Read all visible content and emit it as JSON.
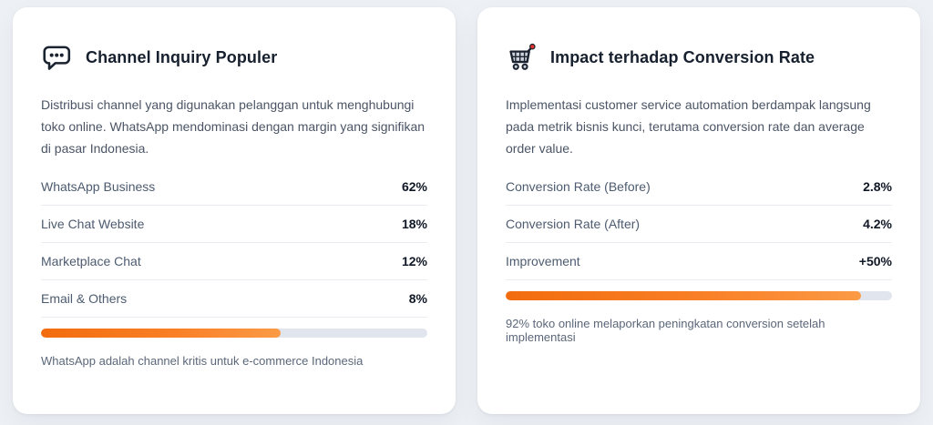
{
  "colors": {
    "page_background": "#edf1f6",
    "card_background": "#ffffff",
    "title_text": "#17202e",
    "body_text": "#4b5565",
    "row_label": "#4d5b70",
    "row_value": "#101826",
    "divider": "#e9edf2",
    "progress_track": "#e0e5ee",
    "progress_start": "#f26c0e",
    "progress_end": "#fb9a45",
    "footnote_text": "#5b6779",
    "cart_icon_accent": "#e8352e"
  },
  "cards": {
    "left": {
      "icon": "speech-balloon-icon",
      "title": "Channel Inquiry Populer",
      "description": "Distribusi channel yang digunakan pelanggan untuk menghubungi toko online. WhatsApp mendominasi dengan margin yang signifikan di pasar Indonesia.",
      "rows": [
        {
          "label": "WhatsApp Business",
          "value": "62%"
        },
        {
          "label": "Live Chat Website",
          "value": "18%"
        },
        {
          "label": "Marketplace Chat",
          "value": "12%"
        },
        {
          "label": "Email & Others",
          "value": "8%"
        }
      ],
      "progress_percent": 62,
      "footnote": "WhatsApp adalah channel kritis untuk e-commerce Indonesia"
    },
    "right": {
      "icon": "shopping-cart-icon",
      "title": "Impact terhadap Conversion Rate",
      "description": "Implementasi customer service automation berdampak langsung pada metrik bisnis kunci, terutama conversion rate dan average order value.",
      "rows": [
        {
          "label": "Conversion Rate (Before)",
          "value": "2.8%"
        },
        {
          "label": "Conversion Rate (After)",
          "value": "4.2%"
        },
        {
          "label": "Improvement",
          "value": "+50%"
        }
      ],
      "progress_percent": 92,
      "footnote": "92% toko online melaporkan peningkatan conversion setelah implementasi"
    }
  }
}
